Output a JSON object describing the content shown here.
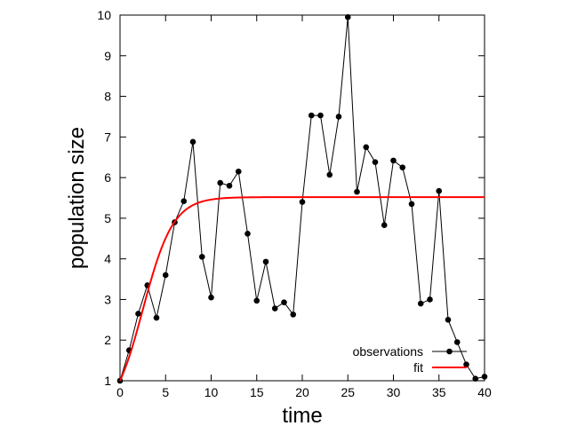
{
  "chart_data": {
    "type": "line",
    "title": "",
    "xlabel": "time",
    "ylabel": "population size",
    "xlim": [
      0,
      40
    ],
    "ylim": [
      1,
      10
    ],
    "xticks": [
      0,
      5,
      10,
      15,
      20,
      25,
      30,
      35,
      40
    ],
    "yticks": [
      1,
      2,
      3,
      4,
      5,
      6,
      7,
      8,
      9,
      10
    ],
    "grid": false,
    "legend_position": "bottom-right",
    "series": [
      {
        "name": "observations",
        "style": "line-points",
        "color": "#000000",
        "x": [
          0,
          1,
          2,
          3,
          4,
          5,
          6,
          7,
          8,
          9,
          10,
          11,
          12,
          13,
          14,
          15,
          16,
          17,
          18,
          19,
          20,
          21,
          22,
          23,
          24,
          25,
          26,
          27,
          28,
          29,
          30,
          31,
          32,
          33,
          34,
          35,
          36,
          37,
          38,
          39,
          40
        ],
        "y": [
          1.0,
          1.75,
          2.65,
          3.35,
          2.55,
          3.6,
          4.9,
          5.42,
          6.88,
          4.05,
          3.05,
          5.87,
          5.8,
          6.15,
          4.62,
          2.97,
          3.93,
          2.78,
          2.93,
          2.63,
          5.4,
          7.53,
          7.53,
          6.07,
          7.5,
          9.95,
          5.65,
          6.75,
          6.38,
          4.83,
          6.42,
          6.25,
          5.35,
          2.9,
          3.0,
          5.67,
          2.5,
          1.95,
          1.4,
          1.05,
          1.1
        ]
      },
      {
        "name": "fit",
        "style": "line",
        "color": "#ff0000",
        "model": "logistic",
        "parameters": {
          "K": 5.52,
          "N0": 1,
          "r": 0.6
        }
      }
    ]
  }
}
